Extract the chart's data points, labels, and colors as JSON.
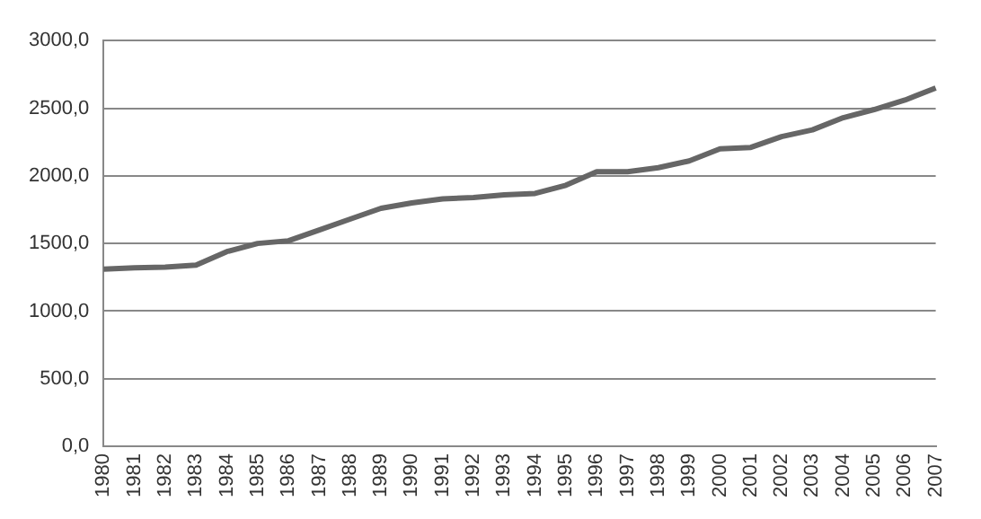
{
  "chart_data": {
    "type": "line",
    "categories": [
      "1980",
      "1981",
      "1982",
      "1983",
      "1984",
      "1985",
      "1986",
      "1987",
      "1988",
      "1989",
      "1990",
      "1991",
      "1992",
      "1993",
      "1994",
      "1995",
      "1996",
      "1997",
      "1998",
      "1999",
      "2000",
      "2001",
      "2002",
      "2003",
      "2004",
      "2005",
      "2006",
      "2007"
    ],
    "series": [
      {
        "color": "#666666",
        "values": [
          1310,
          1320,
          1325,
          1340,
          1440,
          1500,
          1520,
          1600,
          1680,
          1760,
          1800,
          1830,
          1840,
          1860,
          1870,
          1930,
          2030,
          2030,
          2060,
          2110,
          2200,
          2210,
          2290,
          2340,
          2430,
          2490,
          2560,
          2650
        ]
      }
    ],
    "ylim": [
      0,
      3000
    ],
    "yticks": [
      {
        "value": 0,
        "label": "0,0"
      },
      {
        "value": 500,
        "label": "500,0"
      },
      {
        "value": 1000,
        "label": "1000,0"
      },
      {
        "value": 1500,
        "label": "1500,0"
      },
      {
        "value": 2000,
        "label": "2000,0"
      },
      {
        "value": 2500,
        "label": "2500,0"
      },
      {
        "value": 3000,
        "label": "3000,0"
      }
    ],
    "grid": "y",
    "legend": false,
    "marker": "none",
    "line_style": "solid"
  }
}
